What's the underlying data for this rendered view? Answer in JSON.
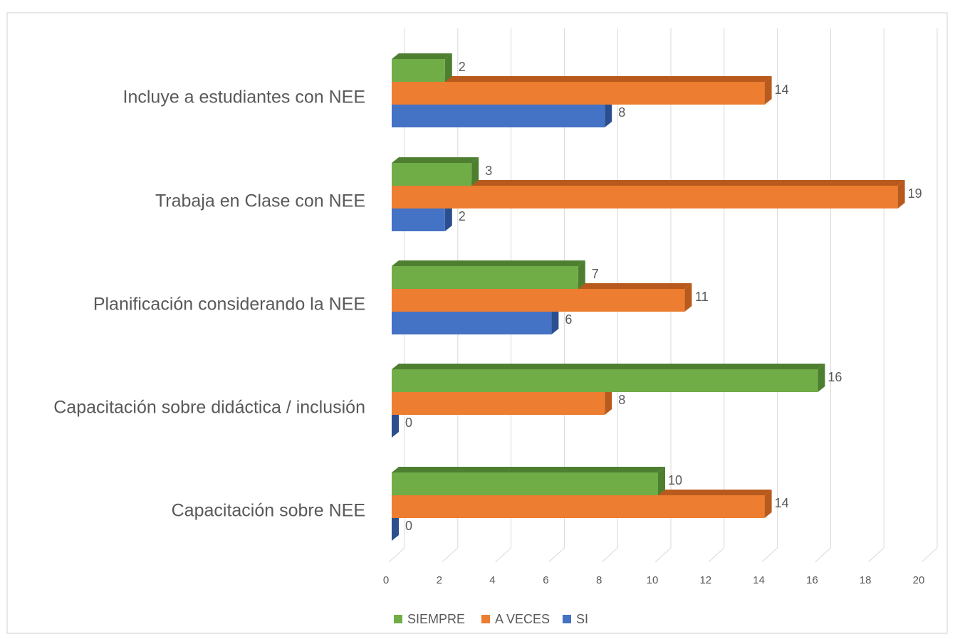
{
  "chart_data": {
    "type": "bar3d_horizontal",
    "categories": [
      "Incluye a estudiantes con NEE",
      "Trabaja en Clase con NEE",
      "Planificación considerando la NEE",
      "Capacitación sobre didáctica / inclusión",
      "Capacitación sobre NEE"
    ],
    "series": [
      {
        "name": "SIEMPRE",
        "color": "#70ad47",
        "dark": "#4e7f31",
        "values": [
          2,
          3,
          7,
          16,
          10
        ]
      },
      {
        "name": "A VECES",
        "color": "#ed7d31",
        "dark": "#b85a1d",
        "values": [
          14,
          19,
          11,
          8,
          14
        ]
      },
      {
        "name": "SI",
        "color": "#4472c4",
        "dark": "#2b4f8e",
        "values": [
          8,
          2,
          6,
          0,
          0
        ]
      }
    ],
    "xlim": [
      0,
      20
    ],
    "xticks": [
      0,
      2,
      4,
      6,
      8,
      10,
      12,
      14,
      16,
      18,
      20
    ],
    "grid": true,
    "legend": "bottom"
  }
}
